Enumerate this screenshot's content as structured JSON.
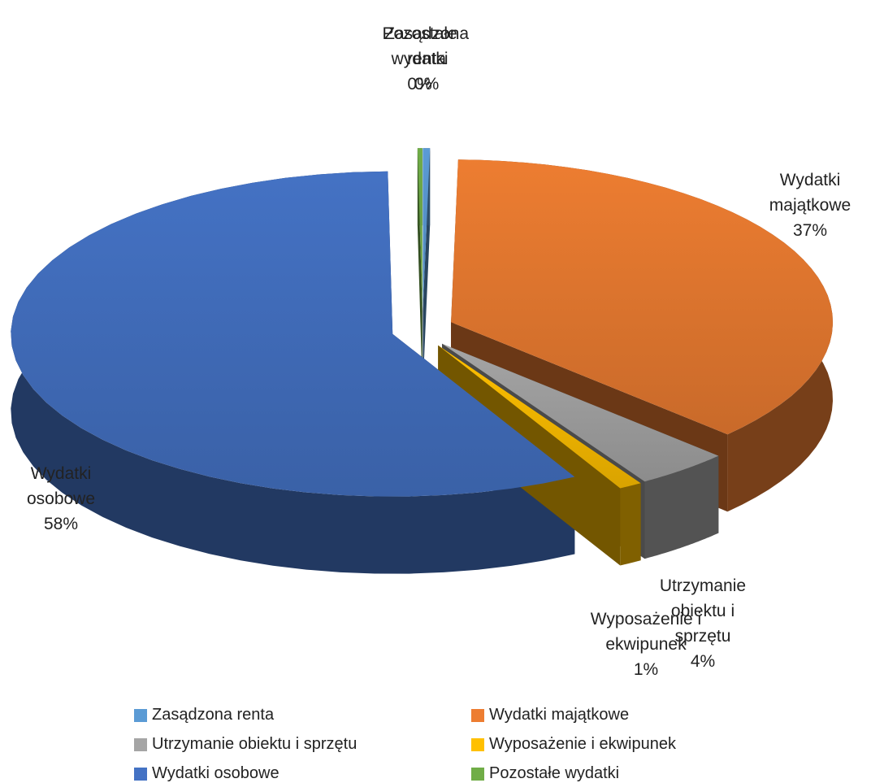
{
  "chart_data": {
    "type": "pie",
    "categories": [
      "Zasądzona renta",
      "Wydatki majątkowe",
      "Utrzymanie obiektu i sprzętu",
      "Wyposażenie i ekwipunek",
      "Wydatki osobowe",
      "Pozostałe wydatki"
    ],
    "values": [
      0.3,
      37,
      4,
      1,
      58,
      0.2
    ],
    "value_labels": [
      "0%",
      "37%",
      "4%",
      "1%",
      "58%",
      "0%"
    ],
    "colors": [
      "#5b9bd5",
      "#ed7d31",
      "#a5a5a5",
      "#ffc000",
      "#4472c4",
      "#70ad47"
    ],
    "legend": "bottom"
  }
}
